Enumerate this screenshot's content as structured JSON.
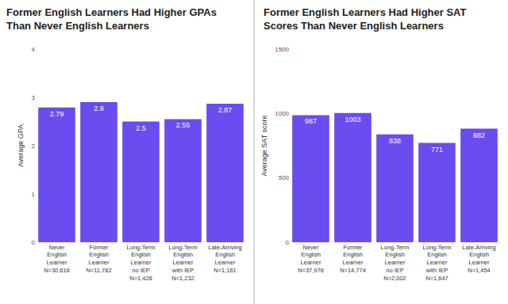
{
  "chart_data": [
    {
      "type": "bar",
      "title": "Former English Learners Had Higher GPAs\nThan Never English Learners",
      "y_label": "Average GPA",
      "categories": [
        "Never\nEnglish\nLearner\nN=30,616",
        "Former\nEnglish\nLearner\nN=11,782",
        "Long-Term\nEnglish\nLearner\nno IEP\nN=1,428",
        "Long-Term\nEnglish\nLearner\nwith IEP\nN=1,232",
        "Late-Arriving\nEnglish\nLearner\nN=1,161"
      ],
      "values": [
        2.79,
        2.9,
        2.5,
        2.55,
        2.87
      ],
      "color": "#6a4cf0",
      "ylim": [
        0,
        4
      ],
      "yticks": [
        0,
        1,
        2,
        3,
        4
      ],
      "grid": false,
      "data_labels": true
    },
    {
      "type": "bar",
      "title": "Former English Learners Had Higher SAT\nScores Than Never English Learners",
      "y_label": "Average SAT score",
      "categories": [
        "Never\nEnglish\nLearner\nN=37,976",
        "Former\nEnglish\nLearner\nN=14,774",
        "Long-Term\nEnglish\nLearner\nno IEP\nN=2,002",
        "Long-Term\nEnglish\nLearner\nwith IEP\nN=1,647",
        "Late-Arriving\nEnglish\nLearner\nN=1,454"
      ],
      "values": [
        987,
        1003,
        838,
        771,
        882
      ],
      "color": "#6a4cf0",
      "ylim": [
        0,
        1500
      ],
      "yticks": [
        0,
        500,
        1000,
        1500
      ],
      "grid": false,
      "data_labels": true
    }
  ]
}
